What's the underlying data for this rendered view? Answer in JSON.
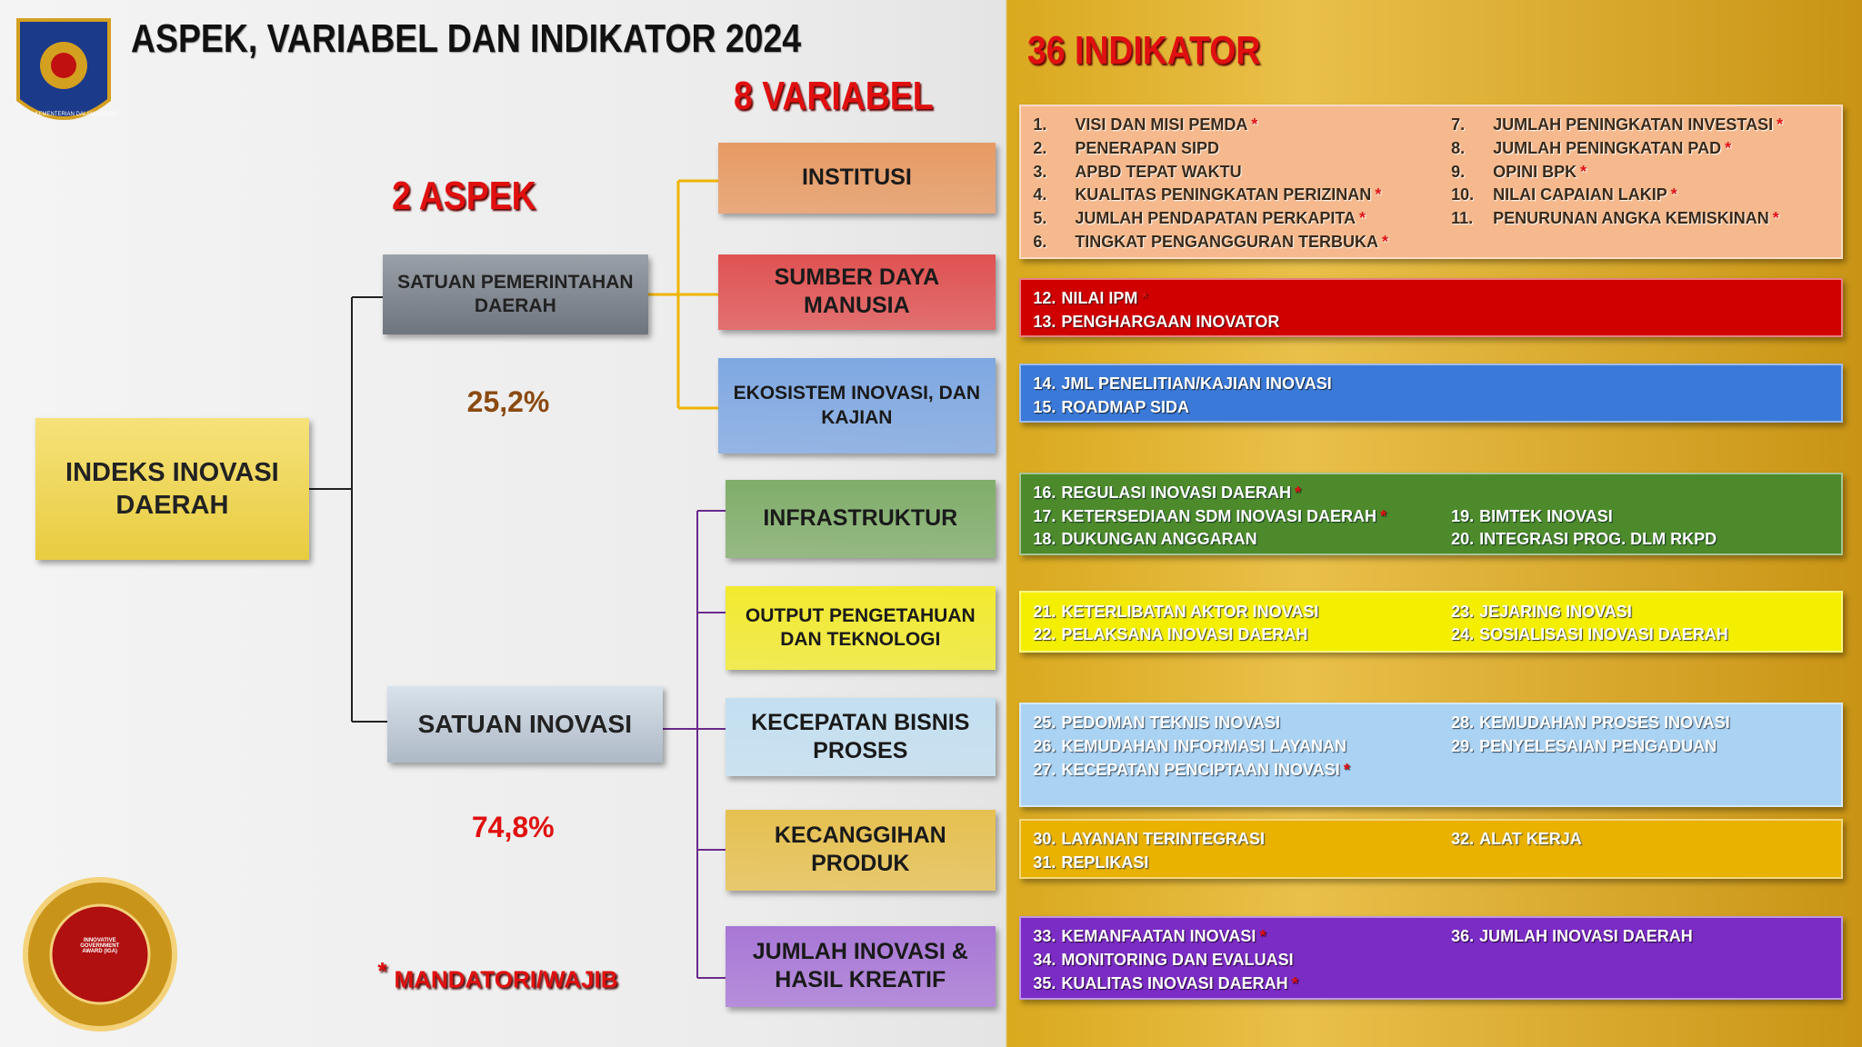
{
  "header": {
    "title": "ASPEK, VARIABEL DAN INDIKATOR 2024",
    "logo_text": "KEMENTERIAN DALAM NEGERI"
  },
  "headings": {
    "aspects": "2 ASPEK",
    "variables": "8 VARIABEL",
    "indicators": "36 INDIKATOR"
  },
  "root": {
    "label": "INDEKS INOVASI DAERAH"
  },
  "aspects": [
    {
      "label": "SATUAN PEMERINTAHAN DAERAH",
      "share": "25,2%"
    },
    {
      "label": "SATUAN INOVASI",
      "share": "74,8%"
    }
  ],
  "variables": [
    {
      "label": "INSTITUSI"
    },
    {
      "label": "SUMBER DAYA MANUSIA"
    },
    {
      "label": "EKOSISTEM INOVASI, DAN KAJIAN"
    },
    {
      "label": "INFRASTRUKTUR"
    },
    {
      "label": "OUTPUT PENGETAHUAN DAN TEKNOLOGI"
    },
    {
      "label": "KECEPATAN BISNIS PROSES"
    },
    {
      "label": "KECANGGIHAN PRODUK"
    },
    {
      "label": "JUMLAH INOVASI & HASIL KREATIF"
    }
  ],
  "indicator_groups": [
    {
      "columns": [
        [
          {
            "no": "1.",
            "text": "VISI DAN MISI PEMDA",
            "mandatory": true
          },
          {
            "no": "2.",
            "text": "PENERAPAN SIPD",
            "mandatory": false
          },
          {
            "no": "3.",
            "text": "APBD TEPAT WAKTU",
            "mandatory": false
          },
          {
            "no": "4.",
            "text": "KUALITAS PENINGKATAN PERIZINAN",
            "mandatory": true
          },
          {
            "no": "5.",
            "text": "JUMLAH PENDAPATAN PERKAPITA",
            "mandatory": true
          },
          {
            "no": "6.",
            "text": "TINGKAT PENGANGGURAN TERBUKA",
            "mandatory": true
          }
        ],
        [
          {
            "no": "7.",
            "text": "JUMLAH PENINGKATAN INVESTASI",
            "mandatory": true
          },
          {
            "no": "8.",
            "text": "JUMLAH PENINGKATAN PAD",
            "mandatory": true
          },
          {
            "no": "9.",
            "text": "OPINI BPK",
            "mandatory": true
          },
          {
            "no": "10.",
            "text": "NILAI CAPAIAN LAKIP",
            "mandatory": true
          },
          {
            "no": "11.",
            "text": "PENURUNAN ANGKA KEMISKINAN",
            "mandatory": true
          }
        ]
      ]
    },
    {
      "columns": [
        [
          {
            "no": "12.",
            "text": "NILAI IPM",
            "mandatory": true
          },
          {
            "no": "13.",
            "text": "PENGHARGAAN INOVATOR",
            "mandatory": false
          }
        ]
      ]
    },
    {
      "columns": [
        [
          {
            "no": "14.",
            "text": "JML PENELITIAN/KAJIAN INOVASI",
            "mandatory": false
          },
          {
            "no": "15.",
            "text": "ROADMAP SIDA",
            "mandatory": false
          }
        ]
      ]
    },
    {
      "columns": [
        [
          {
            "no": "16.",
            "text": "REGULASI INOVASI DAERAH",
            "mandatory": true
          },
          {
            "no": "17.",
            "text": "KETERSEDIAAN SDM INOVASI DAERAH",
            "mandatory": true
          },
          {
            "no": "18.",
            "text": "DUKUNGAN ANGGARAN",
            "mandatory": false
          }
        ],
        [
          {
            "no": "19.",
            "text": "BIMTEK INOVASI",
            "mandatory": false
          },
          {
            "no": "20.",
            "text": "INTEGRASI PROG. DLM RKPD",
            "mandatory": false
          }
        ]
      ]
    },
    {
      "columns": [
        [
          {
            "no": "21.",
            "text": "KETERLIBATAN AKTOR INOVASI",
            "mandatory": false
          },
          {
            "no": "22.",
            "text": "PELAKSANA INOVASI DAERAH",
            "mandatory": false
          }
        ],
        [
          {
            "no": "23.",
            "text": "JEJARING INOVASI",
            "mandatory": false
          },
          {
            "no": "24.",
            "text": "SOSIALISASI INOVASI DAERAH",
            "mandatory": false
          }
        ]
      ]
    },
    {
      "columns": [
        [
          {
            "no": "25.",
            "text": "PEDOMAN TEKNIS INOVASI",
            "mandatory": false
          },
          {
            "no": "26.",
            "text": "KEMUDAHAN INFORMASI LAYANAN",
            "mandatory": false
          },
          {
            "no": "27.",
            "text": "KECEPATAN PENCIPTAAN INOVASI",
            "mandatory": true
          }
        ],
        [
          {
            "no": "28.",
            "text": "KEMUDAHAN PROSES INOVASI",
            "mandatory": false
          },
          {
            "no": "29.",
            "text": "PENYELESAIAN PENGADUAN",
            "mandatory": false
          }
        ]
      ]
    },
    {
      "columns": [
        [
          {
            "no": "30.",
            "text": "LAYANAN TERINTEGRASI",
            "mandatory": false
          },
          {
            "no": "31.",
            "text": "REPLIKASI",
            "mandatory": false
          }
        ],
        [
          {
            "no": "32.",
            "text": "ALAT KERJA",
            "mandatory": false
          }
        ]
      ]
    },
    {
      "columns": [
        [
          {
            "no": "33.",
            "text": "KEMANFAATAN INOVASI",
            "mandatory": true
          },
          {
            "no": "34.",
            "text": "MONITORING DAN EVALUASI",
            "mandatory": false
          },
          {
            "no": "35.",
            "text": "KUALITAS INOVASI DAERAH",
            "mandatory": true
          }
        ],
        [
          {
            "no": "36.",
            "text": "JUMLAH INOVASI DAERAH",
            "mandatory": false
          }
        ]
      ]
    }
  ],
  "legend": {
    "symbol": "*",
    "label": "MANDATORI/WAJIB"
  },
  "badge": {
    "text": "INNOVATIVE GOVERNMENT AWARD (IGA)"
  }
}
